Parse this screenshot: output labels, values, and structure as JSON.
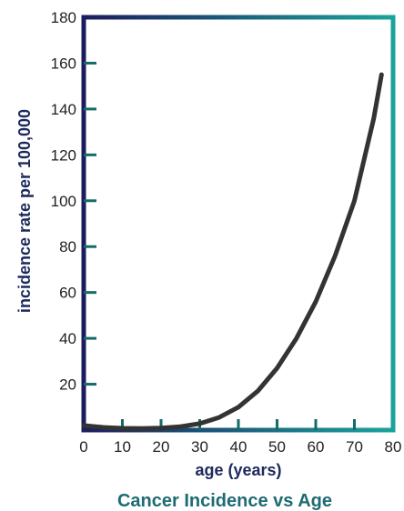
{
  "chart_data": {
    "type": "line",
    "title": "Cancer Incidence vs Age",
    "xlabel": "age (years)",
    "ylabel": "incidence rate per 100,000",
    "xlim": [
      0,
      80
    ],
    "ylim": [
      0,
      180
    ],
    "x_ticks": [
      0,
      10,
      20,
      30,
      40,
      50,
      60,
      70,
      80
    ],
    "x_tick_labels": [
      "0",
      "10",
      "20",
      "30",
      "40",
      "50",
      "60",
      "70",
      "80"
    ],
    "y_ticks": [
      20,
      40,
      60,
      80,
      100,
      120,
      140,
      160,
      180
    ],
    "y_tick_labels": [
      "20",
      "40",
      "60",
      "80",
      "100",
      "120",
      "140",
      "160",
      "180"
    ],
    "grid": false,
    "legend": "none",
    "series": [
      {
        "x": [
          0,
          5,
          10,
          15,
          20,
          25,
          30,
          35,
          40,
          45,
          50,
          55,
          60,
          65,
          70,
          75,
          77
        ],
        "y": [
          2,
          1.2,
          0.8,
          0.7,
          0.9,
          1.5,
          2.8,
          5.5,
          10,
          17,
          27,
          40,
          56,
          76,
          100,
          136,
          155
        ]
      }
    ],
    "colors": {
      "line": "#333333",
      "frame_left": "#1c1d5e",
      "frame_right": "#1aa39a",
      "ticks": "#156a6a",
      "axis_title": "#1c2a5c",
      "title": "#1e6b74"
    }
  }
}
